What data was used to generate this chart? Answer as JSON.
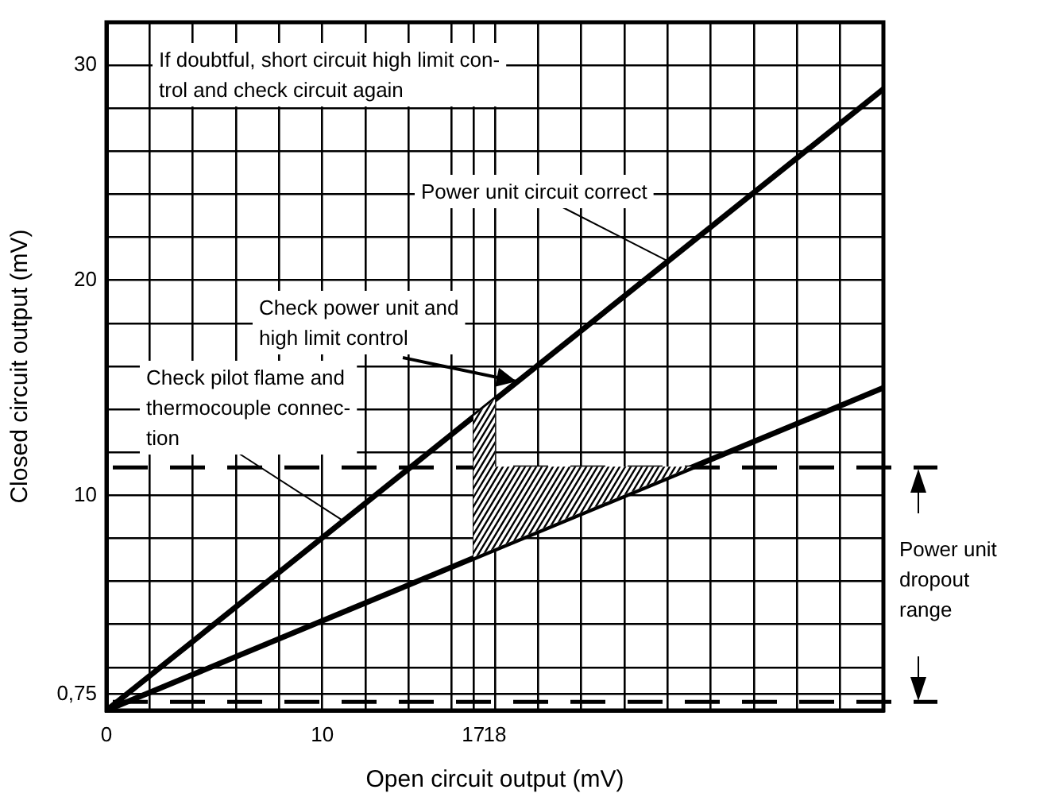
{
  "chart_data": {
    "type": "line",
    "xlabel": "Open circuit output (mV)",
    "ylabel": "Closed circuit output (mV)",
    "xlim": [
      0,
      36
    ],
    "ylim": [
      0,
      32
    ],
    "xticks": [
      0,
      {
        "value": 2,
        "label": null
      },
      {
        "value": 4,
        "label": null
      },
      {
        "value": 6,
        "label": null
      },
      {
        "value": 8,
        "label": null
      },
      10,
      {
        "value": 12,
        "label": null
      },
      {
        "value": 14,
        "label": null
      },
      {
        "value": 16,
        "label": null
      },
      17,
      18,
      {
        "value": 20,
        "label": null
      },
      {
        "value": 22,
        "label": null
      },
      {
        "value": 24,
        "label": null
      },
      {
        "value": 26,
        "label": null
      },
      {
        "value": 28,
        "label": null
      },
      {
        "value": 30,
        "label": null
      },
      {
        "value": 32,
        "label": null
      },
      {
        "value": 34,
        "label": null
      }
    ],
    "yticks": [
      {
        "value": 0.75,
        "label": "0,75"
      },
      {
        "value": 2,
        "label": null
      },
      {
        "value": 4,
        "label": null
      },
      {
        "value": 6,
        "label": null
      },
      {
        "value": 8,
        "label": null
      },
      10,
      {
        "value": 12,
        "label": null
      },
      {
        "value": 14,
        "label": null
      },
      {
        "value": 16,
        "label": null
      },
      {
        "value": 18,
        "label": null
      },
      20,
      {
        "value": 22,
        "label": null
      },
      {
        "value": 24,
        "label": null
      },
      {
        "value": 26,
        "label": null
      },
      {
        "value": 28,
        "label": null
      },
      30
    ],
    "grid": true,
    "marker": "none",
    "legend": false,
    "x": [
      0,
      36
    ],
    "series": [
      {
        "color": "#000000",
        "values": [
          0,
          28.9
        ]
      },
      {
        "color": "#000000",
        "values": [
          0,
          15
        ]
      }
    ],
    "ref_lines": [
      {
        "axis": "y",
        "value": 11.3,
        "line_style": "dashed",
        "color": "#000000"
      },
      {
        "axis": "y",
        "value": 0.4,
        "line_style": "dashed",
        "color": "#000000"
      }
    ],
    "annotations": [
      "If doubtful, short circuit high limit con-\ntrol and check circuit again",
      {
        "text": "Power unit circuit correct",
        "x": 26,
        "y": 20.9
      },
      {
        "text": "Check power unit and\nhigh limit control",
        "x": 19,
        "y": 15.3
      },
      {
        "text": "Check pilot flame and\nthermocouple connec-\ntion",
        "x": 11,
        "y": 8.8
      },
      "Power unit\ndropout\nrange"
    ]
  }
}
